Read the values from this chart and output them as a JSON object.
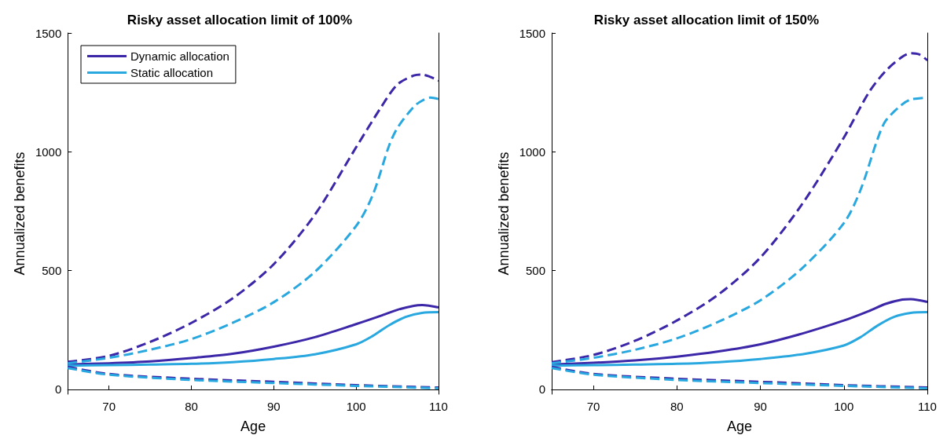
{
  "chart_data": [
    {
      "type": "line",
      "title": "Risky asset allocation limit of 100%",
      "xlabel": "Age",
      "ylabel": "Annualized benefits",
      "xlim": [
        65,
        110
      ],
      "xticks": [
        70,
        80,
        90,
        100,
        110
      ],
      "ylim": [
        -20,
        1500
      ],
      "yticks": [
        0,
        500,
        1000,
        1500
      ],
      "grid": false,
      "legend": "top left",
      "series": [
        {
          "name": "Dynamic allocation",
          "color": "#3b27a8",
          "line_style": "solid",
          "x": [
            65,
            70,
            75,
            80,
            85,
            90,
            95,
            100,
            103,
            105,
            107,
            108,
            110
          ],
          "values": [
            105,
            110,
            118,
            132,
            150,
            180,
            220,
            275,
            310,
            335,
            352,
            355,
            345
          ]
        },
        {
          "name": "Static allocation",
          "color": "#29a8e0",
          "line_style": "solid",
          "x": [
            65,
            70,
            75,
            80,
            85,
            90,
            95,
            100,
            102,
            104,
            106,
            108,
            110
          ],
          "values": [
            100,
            102,
            105,
            108,
            115,
            128,
            148,
            190,
            225,
            270,
            305,
            322,
            325
          ]
        },
        {
          "color": "#3b27a8",
          "line_style": "dashed",
          "x": [
            65,
            70,
            75,
            80,
            85,
            90,
            95,
            100,
            103,
            105,
            107,
            108,
            110
          ],
          "values": [
            116,
            141,
            200,
            280,
            383,
            527,
            736,
            1019,
            1186,
            1283,
            1321,
            1325,
            1299
          ]
        },
        {
          "color": "#29a8e0",
          "line_style": "dashed",
          "x": [
            65,
            70,
            75,
            80,
            85,
            90,
            95,
            100,
            102,
            104,
            105,
            107,
            108,
            109,
            110
          ],
          "values": [
            110,
            133,
            167,
            212,
            280,
            367,
            495,
            688,
            817,
            1026,
            1100,
            1190,
            1215,
            1228,
            1222
          ]
        },
        {
          "color": "#3b27a8",
          "line_style": "dashed",
          "x": [
            65,
            70,
            80,
            90,
            100,
            110
          ],
          "values": [
            95,
            65,
            45,
            32,
            18,
            8
          ]
        },
        {
          "color": "#29a8e0",
          "line_style": "dashed",
          "x": [
            65,
            70,
            80,
            90,
            100,
            110
          ],
          "values": [
            90,
            62,
            40,
            27,
            15,
            5
          ]
        }
      ]
    },
    {
      "type": "line",
      "title": "Risky asset allocation limit of 150%",
      "xlabel": "Age",
      "ylabel": "Annualized benefits",
      "xlim": [
        65,
        110
      ],
      "xticks": [
        70,
        80,
        90,
        100,
        110
      ],
      "ylim": [
        -20,
        1500
      ],
      "yticks": [
        0,
        500,
        1000,
        1500
      ],
      "grid": false,
      "legend": false,
      "series": [
        {
          "color": "#3b27a8",
          "line_style": "solid",
          "x": [
            65,
            70,
            75,
            80,
            85,
            90,
            95,
            100,
            103,
            105,
            107,
            108,
            110
          ],
          "values": [
            105,
            112,
            122,
            138,
            160,
            190,
            235,
            290,
            330,
            360,
            378,
            380,
            368
          ]
        },
        {
          "color": "#29a8e0",
          "line_style": "solid",
          "x": [
            65,
            70,
            75,
            80,
            85,
            90,
            95,
            100,
            102,
            104,
            106,
            108,
            110
          ],
          "values": [
            100,
            102,
            105,
            108,
            115,
            128,
            148,
            185,
            220,
            268,
            305,
            322,
            325
          ]
        },
        {
          "color": "#3b27a8",
          "line_style": "dashed",
          "x": [
            65,
            70,
            75,
            80,
            85,
            90,
            95,
            100,
            103,
            105,
            107,
            108,
            109,
            110
          ],
          "values": [
            115,
            145,
            205,
            290,
            400,
            555,
            780,
            1060,
            1250,
            1340,
            1400,
            1415,
            1410,
            1385
          ]
        },
        {
          "color": "#29a8e0",
          "line_style": "dashed",
          "x": [
            65,
            70,
            75,
            80,
            85,
            90,
            95,
            100,
            102,
            104,
            105,
            107,
            108,
            110
          ],
          "values": [
            110,
            133,
            167,
            215,
            285,
            375,
            510,
            700,
            840,
            1050,
            1130,
            1200,
            1220,
            1228
          ]
        },
        {
          "color": "#3b27a8",
          "line_style": "dashed",
          "x": [
            65,
            70,
            80,
            90,
            100,
            110
          ],
          "values": [
            95,
            65,
            45,
            32,
            18,
            8
          ]
        },
        {
          "color": "#29a8e0",
          "line_style": "dashed",
          "x": [
            65,
            70,
            80,
            90,
            100,
            110
          ],
          "values": [
            90,
            62,
            40,
            27,
            15,
            5
          ]
        }
      ]
    }
  ]
}
